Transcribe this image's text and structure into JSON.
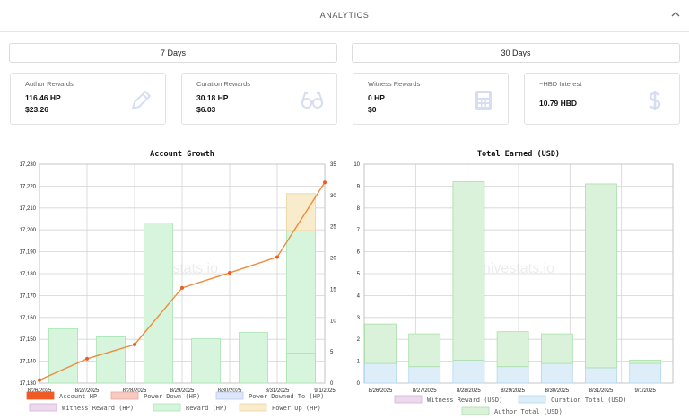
{
  "header": {
    "title": "ANALYTICS"
  },
  "periods": {
    "seven": "7 Days",
    "thirty": "30 Days"
  },
  "cards": [
    {
      "label": "Author Rewards",
      "line1": "116.46 HP",
      "line2": "$23.26",
      "icon": "pencil-icon"
    },
    {
      "label": "Curation Rewards",
      "line1": "30.18 HP",
      "line2": "$6.03",
      "icon": "glasses-icon"
    },
    {
      "label": "Witness Rewards",
      "line1": "0 HP",
      "line2": "$0",
      "icon": "calculator-icon"
    },
    {
      "label": "~HBD Interest",
      "line1": "10.79 HBD",
      "line2": "",
      "icon": "dollar-icon"
    }
  ],
  "watermark": "hivestats.io",
  "colors": {
    "account_hp": "#f05a24",
    "account_hp_line": "#f08a3a",
    "power_down": "#f7c9c3",
    "power_downed_to": "#dde6fb",
    "witness_reward": "#ecd9ee",
    "reward": "#d6f5dc",
    "power_up": "#f8eccc",
    "curation_total": "#ddeef9",
    "author_total": "#d9f2d9"
  },
  "chart_data": [
    {
      "type": "bar",
      "title": "Account Growth",
      "categories": [
        "8/26/2025",
        "8/27/2025",
        "8/28/2025",
        "8/29/2025",
        "8/30/2025",
        "8/31/2025",
        "9/1/2025"
      ],
      "ylim_left": [
        17130,
        17230
      ],
      "yticks_left": [
        "17,130",
        "17,140",
        "17,150",
        "17,160",
        "17,170",
        "17,180",
        "17,190",
        "17,200",
        "17,210",
        "17,220",
        "17,230"
      ],
      "ylim_right": [
        0,
        35
      ],
      "yticks_right": [
        "0",
        "5",
        "10",
        "15",
        "20",
        "25",
        "30",
        "35"
      ],
      "series": [
        {
          "name": "Account HP",
          "axis": "left",
          "kind": "line",
          "values": [
            17131.4,
            17141.1,
            17147.6,
            17173.5,
            17180.4,
            17187.6,
            17221.7
          ]
        },
        {
          "name": "Power Down (HP)",
          "axis": "right",
          "kind": "bar",
          "values": [
            0,
            0,
            0,
            0,
            0,
            0,
            0
          ]
        },
        {
          "name": "Power Downed To (HP)",
          "axis": "right",
          "kind": "bar",
          "values": [
            0,
            0,
            0,
            0,
            0,
            0,
            0
          ]
        },
        {
          "name": "Witness Reward (HP)",
          "axis": "right",
          "kind": "bar",
          "values": [
            0,
            0,
            0,
            0,
            0,
            0,
            0
          ]
        },
        {
          "name": "Reward (HP)",
          "axis": "right",
          "kind": "bar",
          "values": [
            8.7,
            7.4,
            25.6,
            7.1,
            8.1,
            24.4,
            4.8
          ]
        },
        {
          "name": "Power Up (HP)",
          "axis": "right",
          "kind": "bar",
          "values": [
            0,
            0,
            0,
            0,
            0,
            5.9,
            0
          ]
        }
      ],
      "legend": [
        "Account HP",
        "Power Down (HP)",
        "Power Downed To (HP)",
        "Witness Reward (HP)",
        "Reward (HP)",
        "Power Up (HP)"
      ]
    },
    {
      "type": "bar",
      "title": "Total Earned (USD)",
      "categories": [
        "8/26/2025",
        "8/27/2025",
        "8/28/2025",
        "8/29/2025",
        "8/30/2025",
        "8/31/2025",
        "9/1/2025"
      ],
      "ylim": [
        0,
        10
      ],
      "yticks": [
        "0",
        "1",
        "2",
        "3",
        "4",
        "5",
        "6",
        "7",
        "8",
        "9",
        "10"
      ],
      "stacked": true,
      "series": [
        {
          "name": "Witness Reward (USD)",
          "values": [
            0,
            0,
            0,
            0,
            0,
            0,
            0
          ]
        },
        {
          "name": "Curation Total (USD)",
          "values": [
            0.9,
            0.75,
            1.05,
            0.75,
            0.9,
            0.7,
            0.9
          ]
        },
        {
          "name": "Author Total (USD)",
          "values": [
            1.8,
            1.5,
            8.15,
            1.6,
            1.35,
            8.4,
            0.15
          ]
        }
      ],
      "legend": [
        "Witness Reward (USD)",
        "Curation Total (USD)",
        "Author Total (USD)"
      ]
    }
  ]
}
